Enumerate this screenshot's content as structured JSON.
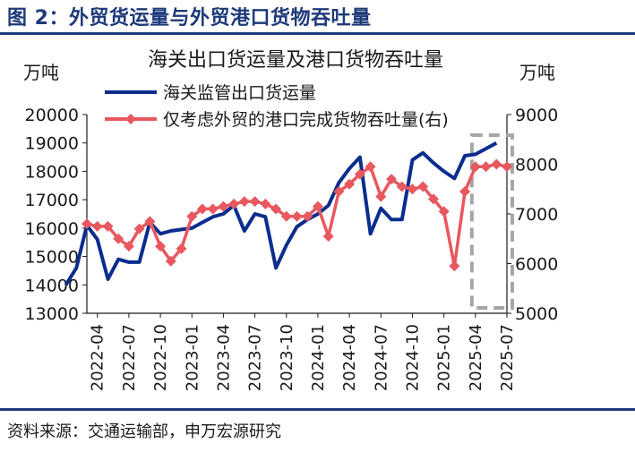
{
  "figure": {
    "title": "图 2：外贸货运量与外贸港口货物吞吐量",
    "source": "资料来源：交通运输部，申万宏源研究"
  },
  "colors": {
    "brand": "#1f3a7a",
    "series_customs": "#0b2d8e",
    "series_port": "#e8585f",
    "highlight_box": "#a6a6a6",
    "axis": "#1a1a1a"
  },
  "chart_data": {
    "type": "line",
    "title": "海关出口货运量及港口货物吞吐量",
    "left_unit": "万吨",
    "right_unit": "万吨",
    "ylim_left": [
      13000,
      20000
    ],
    "ylim_right": [
      5000,
      9000
    ],
    "yticks_left": [
      "20000",
      "19000",
      "18000",
      "17000",
      "16000",
      "15000",
      "14000",
      "13000"
    ],
    "yticks_right": [
      "9000",
      "8000",
      "7000",
      "6000",
      "5000"
    ],
    "xticks": [
      "2022-04",
      "2022-07",
      "2022-10",
      "2023-01",
      "2023-04",
      "2023-07",
      "2023-10",
      "2024-01",
      "2024-04",
      "2024-07",
      "2024-10",
      "2025-01",
      "2025-04",
      "2025-07"
    ],
    "legend_position": "top-left",
    "grid": false,
    "highlight_range": [
      "2025-04",
      "2025-07"
    ],
    "series": [
      {
        "name": "海关监管出口货运量",
        "axis": "left",
        "marker": "none",
        "x": [
          "2022-01",
          "2022-02",
          "2022-03",
          "2022-04",
          "2022-05",
          "2022-06",
          "2022-07",
          "2022-08",
          "2022-09",
          "2022-10",
          "2022-11",
          "2022-12",
          "2023-01",
          "2023-02",
          "2023-03",
          "2023-04",
          "2023-05",
          "2023-06",
          "2023-07",
          "2023-08",
          "2023-09",
          "2023-10",
          "2023-11",
          "2023-12",
          "2024-01",
          "2024-02",
          "2024-03",
          "2024-04",
          "2024-05",
          "2024-06",
          "2024-07",
          "2024-08",
          "2024-09",
          "2024-10",
          "2024-11",
          "2024-12",
          "2025-01",
          "2025-02",
          "2025-03",
          "2025-04",
          "2025-05",
          "2025-06"
        ],
        "values": [
          14000,
          14600,
          16100,
          15600,
          14200,
          14900,
          14800,
          14800,
          16200,
          15800,
          15900,
          15950,
          16000,
          16200,
          16400,
          16500,
          16800,
          15900,
          16500,
          16400,
          14600,
          15400,
          16050,
          16300,
          16500,
          16800,
          17600,
          18100,
          18500,
          15800,
          16700,
          16300,
          16300,
          18400,
          18650,
          18300,
          18000,
          17750,
          18550,
          18600,
          18800,
          19000
        ]
      },
      {
        "name": "仅考虑外贸的港口完成货物吞吐量(右)",
        "axis": "right",
        "marker": "diamond",
        "x": [
          "2022-03",
          "2022-04",
          "2022-05",
          "2022-06",
          "2022-07",
          "2022-08",
          "2022-09",
          "2022-10",
          "2022-11",
          "2022-12",
          "2023-01",
          "2023-02",
          "2023-03",
          "2023-04",
          "2023-05",
          "2023-06",
          "2023-07",
          "2023-08",
          "2023-09",
          "2023-10",
          "2023-11",
          "2023-12",
          "2024-01",
          "2024-02",
          "2024-03",
          "2024-04",
          "2024-05",
          "2024-06",
          "2024-07",
          "2024-08",
          "2024-09",
          "2024-10",
          "2024-11",
          "2024-12",
          "2025-01",
          "2025-02",
          "2025-03",
          "2025-04",
          "2025-05",
          "2025-06",
          "2025-07"
        ],
        "values": [
          6800,
          6750,
          6750,
          6500,
          6350,
          6700,
          6850,
          6350,
          6050,
          6300,
          6950,
          7100,
          7100,
          7150,
          7200,
          7250,
          7250,
          7200,
          7100,
          6950,
          6950,
          6950,
          7150,
          6550,
          7450,
          7600,
          7800,
          7950,
          7350,
          7700,
          7550,
          7500,
          7550,
          7300,
          7050,
          5950,
          7450,
          7950,
          7950,
          8000,
          7950
        ]
      }
    ]
  }
}
